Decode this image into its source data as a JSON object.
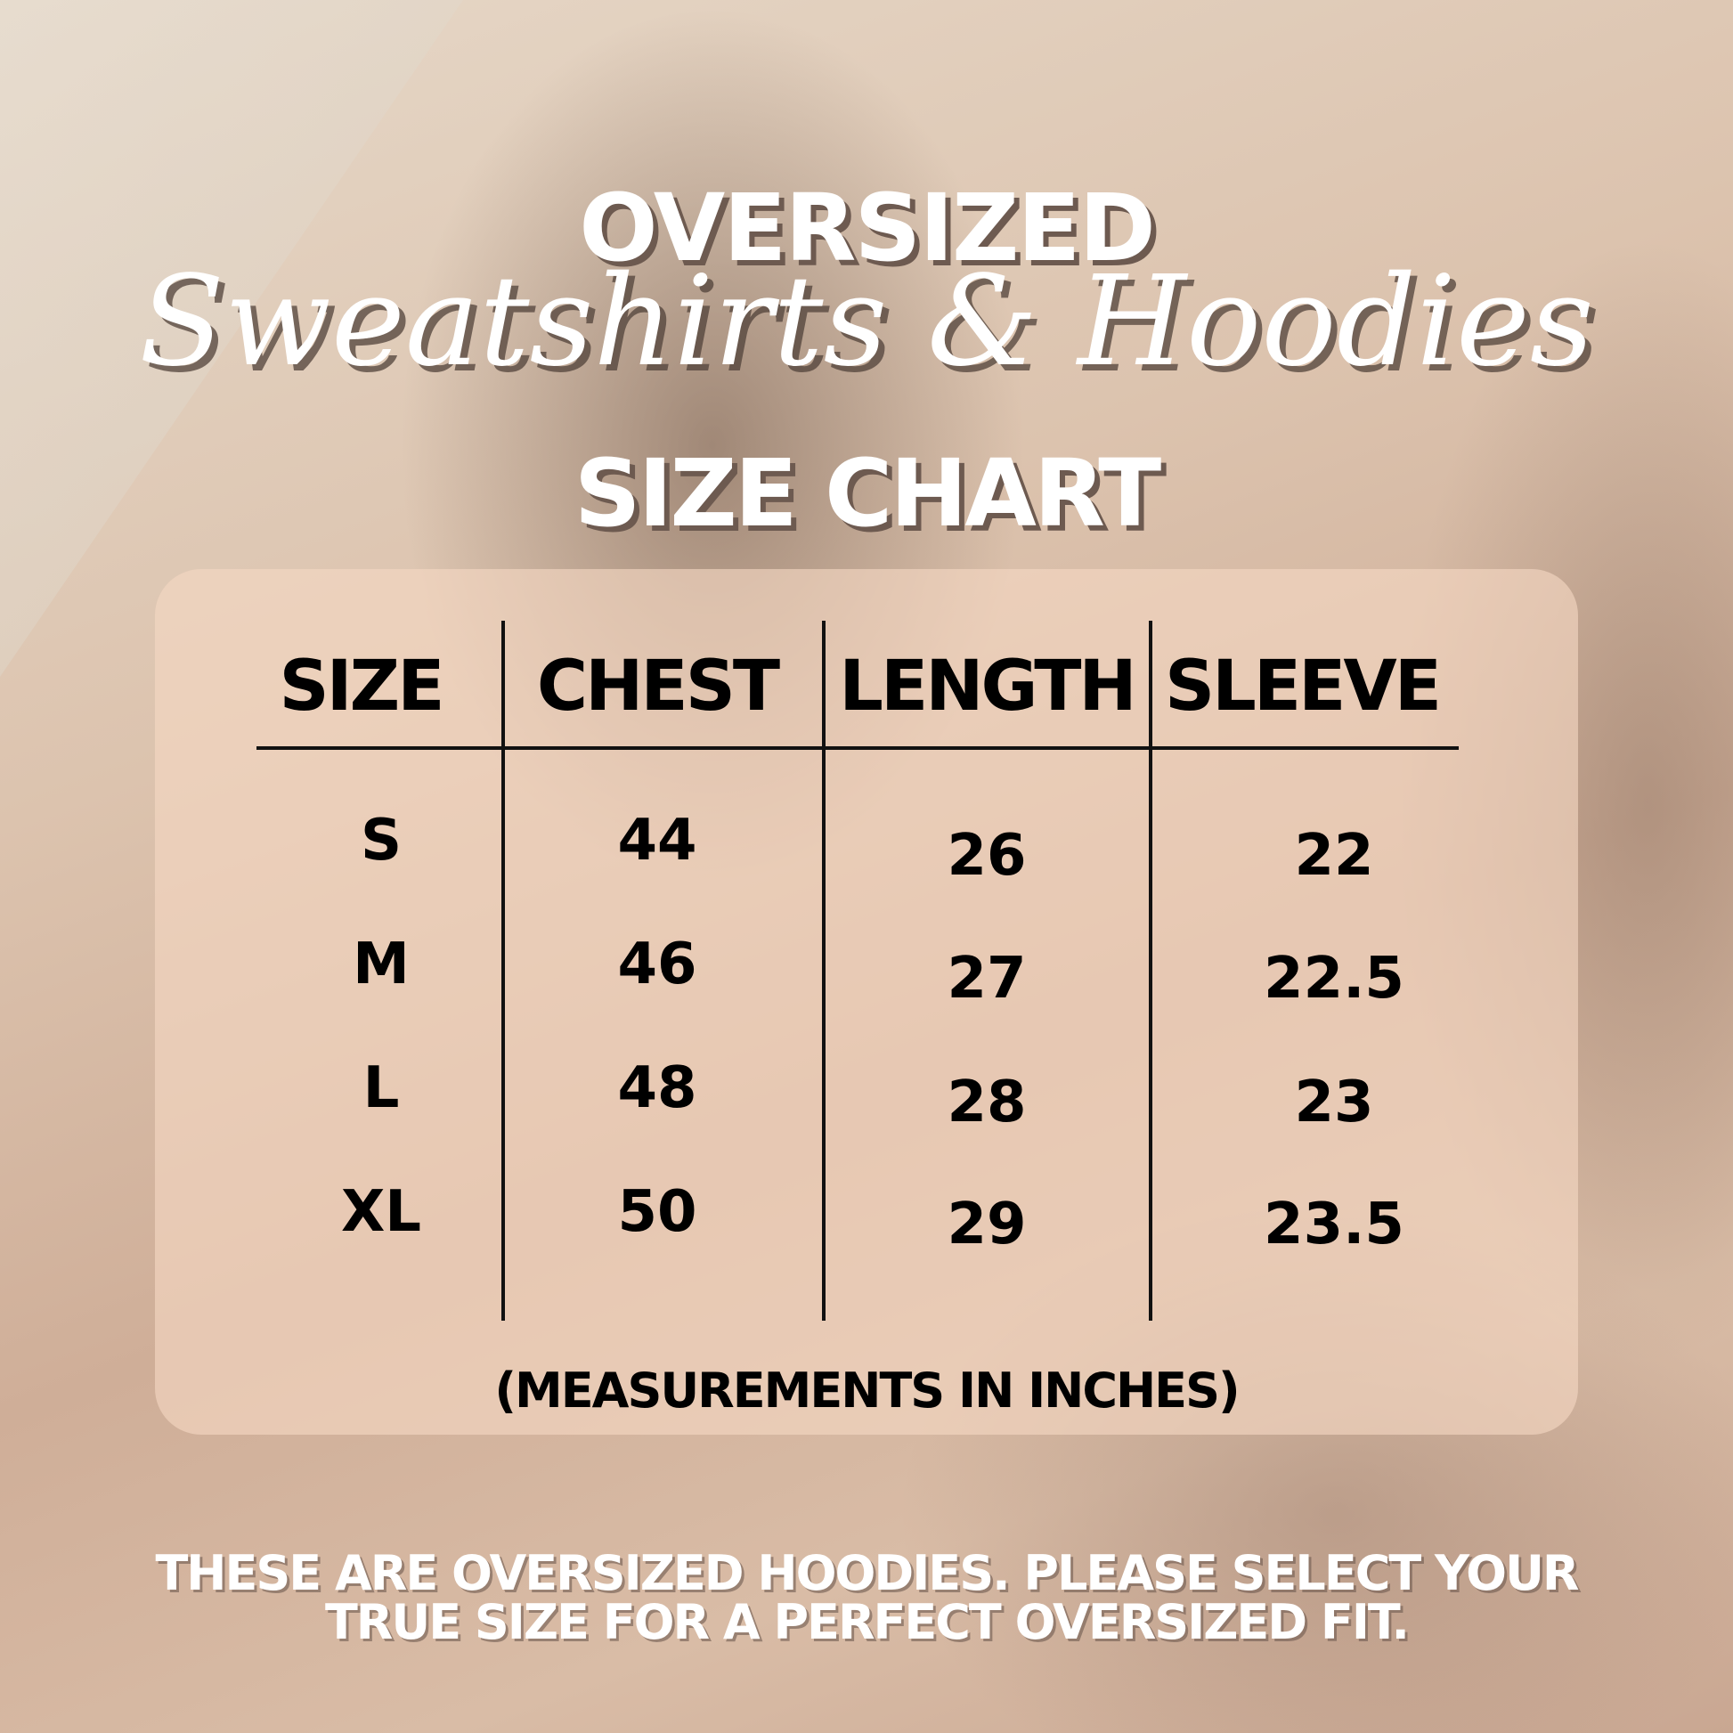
{
  "title": {
    "line1": "OVERSIZED",
    "line2": "Sweatshirts & Hoodies",
    "line3": "SIZE CHART"
  },
  "table": {
    "headers": [
      "SIZE",
      "CHEST",
      "LENGTH",
      "SLEEVE"
    ],
    "rows": [
      [
        "S",
        "44",
        "26",
        "22"
      ],
      [
        "M",
        "46",
        "27",
        "22.5"
      ],
      [
        "L",
        "48",
        "28",
        "23"
      ],
      [
        "XL",
        "50",
        "29",
        "23.5"
      ]
    ],
    "note": "(MEASUREMENTS IN INCHES)"
  },
  "footer": {
    "line1": "THESE ARE OVERSIZED HOODIES. PLEASE SELECT YOUR",
    "line2": "TRUE SIZE FOR A PERFECT OVERSIZED FIT."
  },
  "colors": {
    "panel": "#f6d8c4",
    "text": "#000000",
    "title": "#ffffff"
  }
}
